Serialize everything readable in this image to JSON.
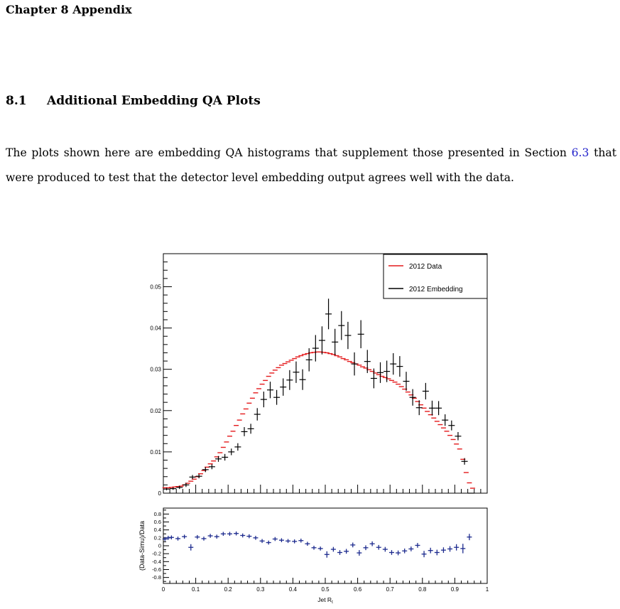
{
  "chapter": {
    "title": "Chapter 8 Appendix"
  },
  "section": {
    "number": "8.1",
    "title": "Additional Embedding QA Plots"
  },
  "paragraph": {
    "part1": "The plots shown here are embedding QA histograms that supplement those presented in Section ",
    "ref": "6.3",
    "part2": " that were produced to test that the detector level embedding output agrees well with the data."
  },
  "chart_data": [
    {
      "type": "line",
      "title": "",
      "xlabel": "Jet R_t",
      "ylabel": "",
      "xlim": [
        0,
        1
      ],
      "ylim": [
        0,
        0.058
      ],
      "y_ticks": [
        "0",
        "0.01",
        "0.02",
        "0.03",
        "0.04",
        "0.05"
      ],
      "legend_position": "top-right",
      "series": [
        {
          "name": "2012 Data",
          "color": "#e41a1c",
          "marker": "horizontal-bin",
          "x": [
            0.005,
            0.015,
            0.025,
            0.035,
            0.045,
            0.055,
            0.065,
            0.075,
            0.085,
            0.095,
            0.105,
            0.115,
            0.125,
            0.135,
            0.145,
            0.155,
            0.165,
            0.175,
            0.185,
            0.195,
            0.205,
            0.215,
            0.225,
            0.235,
            0.245,
            0.255,
            0.265,
            0.275,
            0.285,
            0.295,
            0.305,
            0.315,
            0.325,
            0.335,
            0.345,
            0.355,
            0.365,
            0.375,
            0.385,
            0.395,
            0.405,
            0.415,
            0.425,
            0.435,
            0.445,
            0.455,
            0.465,
            0.475,
            0.485,
            0.495,
            0.505,
            0.515,
            0.525,
            0.535,
            0.545,
            0.555,
            0.565,
            0.575,
            0.585,
            0.595,
            0.605,
            0.615,
            0.625,
            0.635,
            0.645,
            0.655,
            0.665,
            0.675,
            0.685,
            0.695,
            0.705,
            0.715,
            0.725,
            0.735,
            0.745,
            0.755,
            0.765,
            0.775,
            0.785,
            0.795,
            0.805,
            0.815,
            0.825,
            0.835,
            0.845,
            0.855,
            0.865,
            0.875,
            0.885,
            0.895,
            0.905,
            0.915,
            0.925,
            0.935,
            0.945,
            0.955
          ],
          "y": [
            0.0013,
            0.0013,
            0.0014,
            0.0015,
            0.0016,
            0.0017,
            0.002,
            0.0024,
            0.0029,
            0.0034,
            0.004,
            0.0047,
            0.0055,
            0.0063,
            0.0071,
            0.0078,
            0.0088,
            0.0098,
            0.0111,
            0.0124,
            0.0138,
            0.015,
            0.0164,
            0.0177,
            0.0192,
            0.0204,
            0.0218,
            0.023,
            0.0243,
            0.0253,
            0.0264,
            0.0273,
            0.0283,
            0.0291,
            0.0298,
            0.0304,
            0.031,
            0.0314,
            0.0318,
            0.0322,
            0.0326,
            0.033,
            0.0333,
            0.0336,
            0.0338,
            0.034,
            0.0341,
            0.0342,
            0.0342,
            0.0341,
            0.034,
            0.0338,
            0.0336,
            0.0333,
            0.033,
            0.0326,
            0.0323,
            0.0319,
            0.0316,
            0.0313,
            0.031,
            0.0306,
            0.0303,
            0.0299,
            0.0295,
            0.0291,
            0.0287,
            0.0283,
            0.028,
            0.0277,
            0.0273,
            0.0269,
            0.0264,
            0.0258,
            0.0252,
            0.0245,
            0.0238,
            0.023,
            0.0222,
            0.0214,
            0.0206,
            0.0198,
            0.019,
            0.0182,
            0.0174,
            0.0166,
            0.0158,
            0.015,
            0.014,
            0.013,
            0.0119,
            0.0107,
            0.0082,
            0.005,
            0.0025,
            0.0012
          ]
        },
        {
          "name": "2012 Embedding",
          "color": "#000000",
          "marker": "cross",
          "x": [
            0.01,
            0.03,
            0.05,
            0.07,
            0.09,
            0.11,
            0.13,
            0.15,
            0.17,
            0.19,
            0.21,
            0.23,
            0.25,
            0.27,
            0.29,
            0.31,
            0.33,
            0.35,
            0.37,
            0.39,
            0.41,
            0.43,
            0.45,
            0.47,
            0.49,
            0.51,
            0.53,
            0.55,
            0.57,
            0.59,
            0.61,
            0.63,
            0.65,
            0.67,
            0.69,
            0.71,
            0.73,
            0.75,
            0.77,
            0.79,
            0.81,
            0.83,
            0.85,
            0.87,
            0.89,
            0.91,
            0.93,
            0.95
          ],
          "y": [
            0.001,
            0.0011,
            0.0014,
            0.002,
            0.0039,
            0.0041,
            0.0057,
            0.0064,
            0.0083,
            0.0087,
            0.01,
            0.0112,
            0.0149,
            0.0156,
            0.0191,
            0.0227,
            0.025,
            0.0232,
            0.0257,
            0.0274,
            0.0293,
            0.0275,
            0.0323,
            0.0351,
            0.037,
            0.0434,
            0.0366,
            0.0406,
            0.0382,
            0.0313,
            0.0385,
            0.0319,
            0.0278,
            0.0292,
            0.0295,
            0.0313,
            0.0307,
            0.0271,
            0.0232,
            0.0207,
            0.0247,
            0.0206,
            0.0206,
            0.0177,
            0.0164,
            0.0138,
            0.0077,
            0.0
          ],
          "yerr": [
            0.0003,
            0.0003,
            0.0004,
            0.0005,
            0.0005,
            0.0005,
            0.0006,
            0.0006,
            0.0007,
            0.0008,
            0.0008,
            0.0009,
            0.0011,
            0.0012,
            0.0015,
            0.0019,
            0.002,
            0.0018,
            0.0021,
            0.0024,
            0.0026,
            0.0025,
            0.0028,
            0.0032,
            0.0034,
            0.0037,
            0.0032,
            0.0035,
            0.0033,
            0.0028,
            0.0034,
            0.0028,
            0.0024,
            0.0025,
            0.0026,
            0.0026,
            0.0025,
            0.0023,
            0.002,
            0.0018,
            0.002,
            0.0018,
            0.0017,
            0.0014,
            0.0012,
            0.001,
            0.0008,
            0.0
          ]
        }
      ]
    },
    {
      "type": "scatter",
      "title": "",
      "xlabel": "Jet R_t",
      "ylabel": "(Data-Simu)/Data",
      "xlim": [
        0,
        1
      ],
      "ylim": [
        -0.95,
        0.95
      ],
      "y_ticks": [
        "0.8",
        "0.6",
        "0.4",
        "0.2",
        "0",
        "-0.2",
        "-0.4",
        "-0.6",
        "-0.8"
      ],
      "x_ticks": [
        "0",
        "0.1",
        "0.2",
        "0.3",
        "0.4",
        "0.5",
        "0.6",
        "0.7",
        "0.8",
        "0.9",
        "1"
      ],
      "series": [
        {
          "color": "#1c2a8e",
          "marker": "cross",
          "x": [
            0.005,
            0.015,
            0.025,
            0.045,
            0.065,
            0.085,
            0.105,
            0.125,
            0.145,
            0.165,
            0.185,
            0.205,
            0.225,
            0.245,
            0.265,
            0.285,
            0.305,
            0.325,
            0.345,
            0.365,
            0.385,
            0.405,
            0.425,
            0.445,
            0.465,
            0.485,
            0.505,
            0.525,
            0.545,
            0.565,
            0.585,
            0.605,
            0.625,
            0.645,
            0.665,
            0.685,
            0.705,
            0.725,
            0.745,
            0.765,
            0.785,
            0.805,
            0.825,
            0.845,
            0.865,
            0.885,
            0.905,
            0.925,
            0.945
          ],
          "y": [
            0.17,
            0.2,
            0.21,
            0.18,
            0.23,
            -0.04,
            0.22,
            0.18,
            0.25,
            0.23,
            0.3,
            0.3,
            0.31,
            0.26,
            0.24,
            0.2,
            0.12,
            0.08,
            0.17,
            0.14,
            0.12,
            0.11,
            0.13,
            0.05,
            -0.05,
            -0.07,
            -0.22,
            -0.09,
            -0.17,
            -0.14,
            0.02,
            -0.18,
            -0.05,
            0.05,
            -0.04,
            -0.09,
            -0.17,
            -0.18,
            -0.13,
            -0.08,
            0.01,
            -0.21,
            -0.12,
            -0.17,
            -0.11,
            -0.08,
            -0.04,
            -0.07,
            0.22
          ],
          "yerr": [
            0.05,
            0.05,
            0.05,
            0.05,
            0.05,
            0.08,
            0.05,
            0.05,
            0.05,
            0.05,
            0.05,
            0.05,
            0.05,
            0.05,
            0.05,
            0.05,
            0.05,
            0.05,
            0.05,
            0.05,
            0.05,
            0.05,
            0.05,
            0.05,
            0.05,
            0.05,
            0.08,
            0.06,
            0.06,
            0.06,
            0.06,
            0.07,
            0.06,
            0.06,
            0.06,
            0.06,
            0.06,
            0.06,
            0.06,
            0.06,
            0.06,
            0.08,
            0.07,
            0.07,
            0.07,
            0.07,
            0.08,
            0.12,
            0.08
          ]
        }
      ]
    }
  ]
}
